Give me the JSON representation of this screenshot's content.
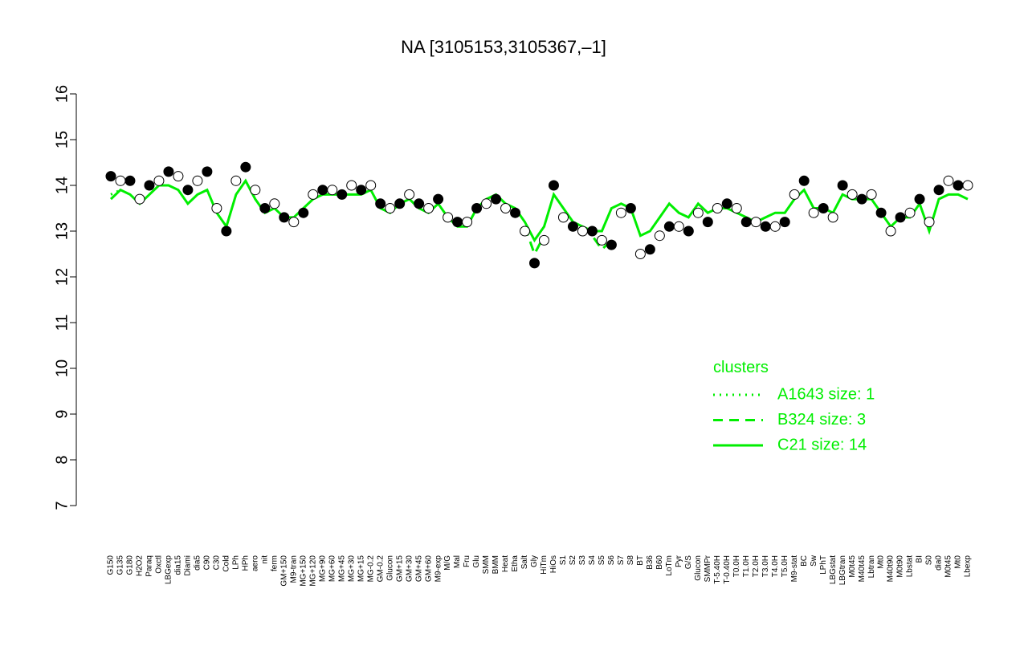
{
  "chart_data": {
    "type": "line",
    "title": "NA [3105153,3105367,–1]",
    "categories": [
      "G150",
      "G135",
      "G180",
      "H2O2",
      "Paraq",
      "Oxctl",
      "LBGexp",
      "dia15",
      "Diami",
      "dia5",
      "C90",
      "C30",
      "Cold",
      "LPh",
      "HPh",
      "aero",
      "nit",
      "ferm",
      "GM+150",
      "M9-tran",
      "MG+150",
      "MG+120",
      "MG+90",
      "MG+60",
      "MG+45",
      "MG+30",
      "MG+15",
      "MG-0.2",
      "GM-0.2",
      "Glucon",
      "GM+15",
      "GM+30",
      "GM+45",
      "GM+60",
      "M9-exp",
      "M/G",
      "Mal",
      "Fru",
      "Glu",
      "SMM",
      "BMM",
      "Heat",
      "Etha",
      "Salt",
      "Gly",
      "HiTm",
      "HiOs",
      "S1",
      "S2",
      "S3",
      "S4",
      "S5",
      "S6",
      "S7",
      "S8",
      "BT",
      "B36",
      "B60",
      "LoTm",
      "Pyr",
      "G/S",
      "Glucon",
      "SMMPr",
      "T-5.40H",
      "T-0.40H",
      "T0.0H",
      "T1.0H",
      "T2.0H",
      "T3.0H",
      "T4.0H",
      "T5.0H",
      "M9-stat",
      "BC",
      "Sw",
      "LPhT",
      "LBGstat",
      "LBGtran",
      "M0t45",
      "M40t45",
      "Lbtran",
      "Mt0",
      "M40t90",
      "M0t90",
      "Lbstat",
      "BI",
      "S0",
      "dia0",
      "M0t45",
      "Mt0",
      "Lbexp"
    ],
    "values": [
      14.2,
      14.1,
      14.1,
      13.7,
      14.0,
      14.1,
      14.3,
      14.2,
      13.9,
      14.1,
      14.3,
      13.5,
      13.0,
      14.1,
      14.4,
      13.9,
      13.5,
      13.6,
      13.3,
      13.2,
      13.4,
      13.8,
      13.9,
      13.9,
      13.8,
      14.0,
      13.9,
      14.0,
      13.6,
      13.5,
      13.6,
      13.8,
      13.6,
      13.5,
      13.7,
      13.3,
      13.2,
      13.2,
      13.5,
      13.6,
      13.7,
      13.5,
      13.4,
      13.0,
      12.3,
      12.8,
      14.0,
      13.3,
      13.1,
      13.0,
      13.0,
      12.8,
      12.7,
      13.4,
      13.5,
      12.5,
      12.6,
      12.9,
      13.1,
      13.1,
      13.0,
      13.4,
      13.2,
      13.5,
      13.6,
      13.5,
      13.2,
      13.2,
      13.1,
      13.1,
      13.2,
      13.8,
      14.1,
      13.4,
      13.5,
      13.3,
      14.0,
      13.8,
      13.7,
      13.8,
      13.4,
      13.0,
      13.3,
      13.4,
      13.7,
      13.2,
      13.9,
      14.1,
      14.0,
      14.0
    ],
    "marker_colors": [
      "#000000",
      "#ffffff"
    ],
    "series": [
      {
        "name": "A1643 size: 1",
        "color": "#00ee00",
        "dash": "dotted",
        "values": [
          13.8,
          13.9,
          null,
          null,
          null,
          null,
          null,
          null,
          null,
          null,
          null,
          null,
          null,
          null,
          null,
          null,
          null,
          null,
          null,
          null,
          null,
          null,
          null,
          null,
          null,
          null,
          null,
          null,
          null,
          null,
          null,
          null,
          null,
          null,
          null,
          null,
          null,
          null,
          null,
          null,
          null,
          null,
          null,
          null,
          null,
          null,
          null,
          null,
          null,
          null,
          null,
          null,
          null,
          null,
          null,
          null,
          null,
          null,
          null,
          null,
          null,
          null,
          null,
          null,
          null,
          null,
          null,
          null,
          null,
          null,
          null,
          null,
          null,
          null,
          null,
          null,
          null,
          null,
          null,
          null,
          null,
          null,
          null,
          null,
          null,
          null,
          null,
          null,
          null,
          null
        ]
      },
      {
        "name": "B324 size: 3",
        "color": "#00ee00",
        "dash": "dashed",
        "values": [
          null,
          null,
          null,
          null,
          null,
          null,
          null,
          null,
          null,
          null,
          null,
          null,
          null,
          null,
          null,
          null,
          null,
          null,
          null,
          null,
          null,
          null,
          null,
          null,
          null,
          null,
          null,
          null,
          null,
          null,
          null,
          null,
          null,
          null,
          null,
          null,
          null,
          null,
          null,
          null,
          null,
          null,
          null,
          13.1,
          12.5,
          12.9,
          null,
          null,
          null,
          13.1,
          12.9,
          12.6,
          12.8,
          null,
          null,
          null,
          null,
          null,
          null,
          null,
          null,
          null,
          null,
          null,
          null,
          null,
          null,
          null,
          null,
          null,
          null,
          null,
          null,
          null,
          null,
          null,
          null,
          null,
          null,
          null,
          null,
          null,
          null,
          null,
          null,
          null,
          null,
          null,
          null,
          null
        ]
      },
      {
        "name": "C21 size: 14",
        "color": "#00ee00",
        "dash": "solid",
        "values": [
          13.7,
          13.9,
          13.8,
          13.6,
          13.8,
          14.0,
          14.0,
          13.9,
          13.6,
          13.8,
          13.9,
          13.4,
          13.1,
          13.8,
          14.1,
          13.7,
          13.4,
          13.5,
          13.3,
          13.3,
          13.5,
          13.7,
          13.8,
          13.8,
          13.8,
          13.8,
          13.8,
          13.9,
          13.5,
          13.4,
          13.6,
          13.7,
          13.5,
          13.4,
          13.6,
          13.3,
          13.1,
          13.1,
          13.5,
          13.7,
          13.8,
          13.6,
          13.5,
          13.2,
          12.8,
          13.1,
          13.8,
          13.5,
          13.2,
          13.1,
          13.0,
          13.0,
          13.5,
          13.6,
          13.5,
          12.9,
          13.0,
          13.3,
          13.6,
          13.4,
          13.3,
          13.6,
          13.4,
          13.5,
          13.5,
          13.4,
          13.3,
          13.2,
          13.3,
          13.4,
          13.4,
          13.7,
          13.9,
          13.5,
          13.5,
          13.4,
          13.8,
          13.7,
          13.7,
          13.7,
          13.4,
          13.1,
          13.3,
          13.3,
          13.6,
          13.0,
          13.7,
          13.8,
          13.8,
          13.7
        ]
      }
    ],
    "ylim": [
      7,
      16
    ],
    "yticks": [
      7,
      8,
      9,
      10,
      11,
      12,
      13,
      14,
      15,
      16
    ],
    "legend_title": "clusters",
    "legend_position": "right"
  }
}
